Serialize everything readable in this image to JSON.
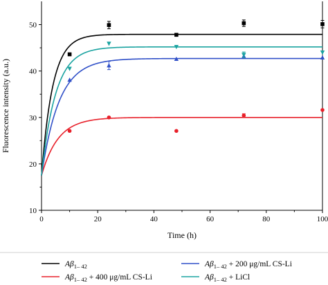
{
  "chart_data": {
    "type": "scatter",
    "xlabel": "Time (h)",
    "ylabel": "Fluorescence intensity (a.u.)",
    "xlim": [
      0,
      100
    ],
    "ylim": [
      10,
      55
    ],
    "xticks": [
      "0",
      "20",
      "40",
      "60",
      "80",
      "100"
    ],
    "yticks": [
      "10",
      "20",
      "30",
      "40",
      "50"
    ],
    "grid": false,
    "legend_position": "bottom",
    "series": [
      {
        "name": "Aβ1–42",
        "label_main": "Aβ",
        "label_sub": "1– 42",
        "label_suffix": "",
        "color": "#000000",
        "marker": "square",
        "x": [
          10,
          24,
          48,
          72,
          100
        ],
        "y": [
          43.6,
          49.9,
          47.8,
          50.3,
          50.1
        ],
        "err": [
          0,
          0.8,
          0,
          0.7,
          0.8
        ],
        "fit_start": 17.5,
        "fit_plateau": 47.9,
        "fit_rate": 0.25
      },
      {
        "name": "Aβ1–42 + 400 μg/mL CS-Li",
        "label_main": "Aβ",
        "label_sub": "1– 42",
        "label_suffix": " + 400 μg/mL CS-Li",
        "color": "#e8202a",
        "marker": "circle",
        "x": [
          10,
          24,
          48,
          72,
          100
        ],
        "y": [
          27.1,
          30.0,
          27.1,
          30.4,
          31.6
        ],
        "err": [
          0,
          0,
          0,
          0.4,
          0
        ],
        "fit_start": 17.5,
        "fit_plateau": 30.0,
        "fit_rate": 0.17
      },
      {
        "name": "Aβ1–42 + 200 μg/mL CS-Li",
        "label_main": "Aβ",
        "label_sub": "1– 42",
        "label_suffix": " + 200 μg/mL CS-Li",
        "color": "#3050c8",
        "marker": "triangle-up",
        "x": [
          10,
          24,
          48,
          72,
          100
        ],
        "y": [
          38.1,
          41.2,
          42.6,
          43.2,
          42.9
        ],
        "err": [
          0,
          0.9,
          0,
          0.5,
          0
        ],
        "fit_start": 17.5,
        "fit_plateau": 42.7,
        "fit_rate": 0.16
      },
      {
        "name": "Aβ1–42 + LiCl",
        "label_main": "Aβ",
        "label_sub": "1– 42",
        "label_suffix": " + LiCl",
        "color": "#1aa3a0",
        "marker": "triangle-down",
        "x": [
          10,
          24,
          48,
          72,
          100
        ],
        "y": [
          40.5,
          45.9,
          45.2,
          43.5,
          44.0
        ],
        "err": [
          0,
          0,
          0,
          0.6,
          0
        ],
        "fit_start": 17.5,
        "fit_plateau": 45.2,
        "fit_rate": 0.2
      }
    ]
  }
}
